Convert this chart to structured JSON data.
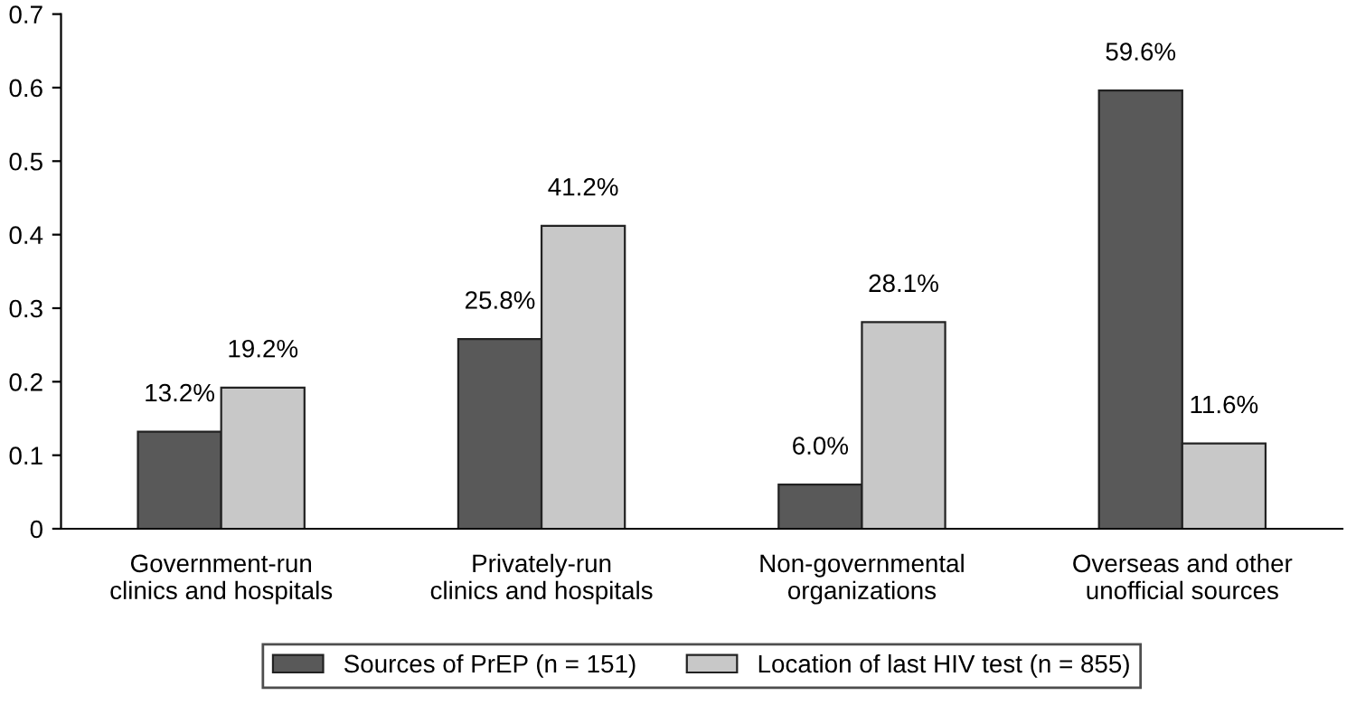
{
  "chart_data": {
    "type": "bar",
    "categories": [
      "Government-run\nclinics and hospitals",
      "Privately-run\nclinics and hospitals",
      "Non-governmental\norganizations",
      "Overseas and other\nunofficial sources"
    ],
    "series": [
      {
        "name": "Sources of PrEP (n = 151)",
        "color": "#595959",
        "values": [
          0.132,
          0.258,
          0.06,
          0.596
        ],
        "value_labels": [
          "13.2%",
          "25.8%",
          "6.0%",
          "59.6%"
        ]
      },
      {
        "name": "Location of last HIV test (n = 855)",
        "color": "#c8c8c8",
        "values": [
          0.192,
          0.412,
          0.281,
          0.116
        ],
        "value_labels": [
          "19.2%",
          "41.2%",
          "28.1%",
          "11.6%"
        ]
      }
    ],
    "ylim": [
      0,
      0.7
    ],
    "yticks": [
      0,
      0.1,
      0.2,
      0.3,
      0.4,
      0.5,
      0.6,
      0.7
    ],
    "grid": false,
    "legend": "bottom"
  }
}
